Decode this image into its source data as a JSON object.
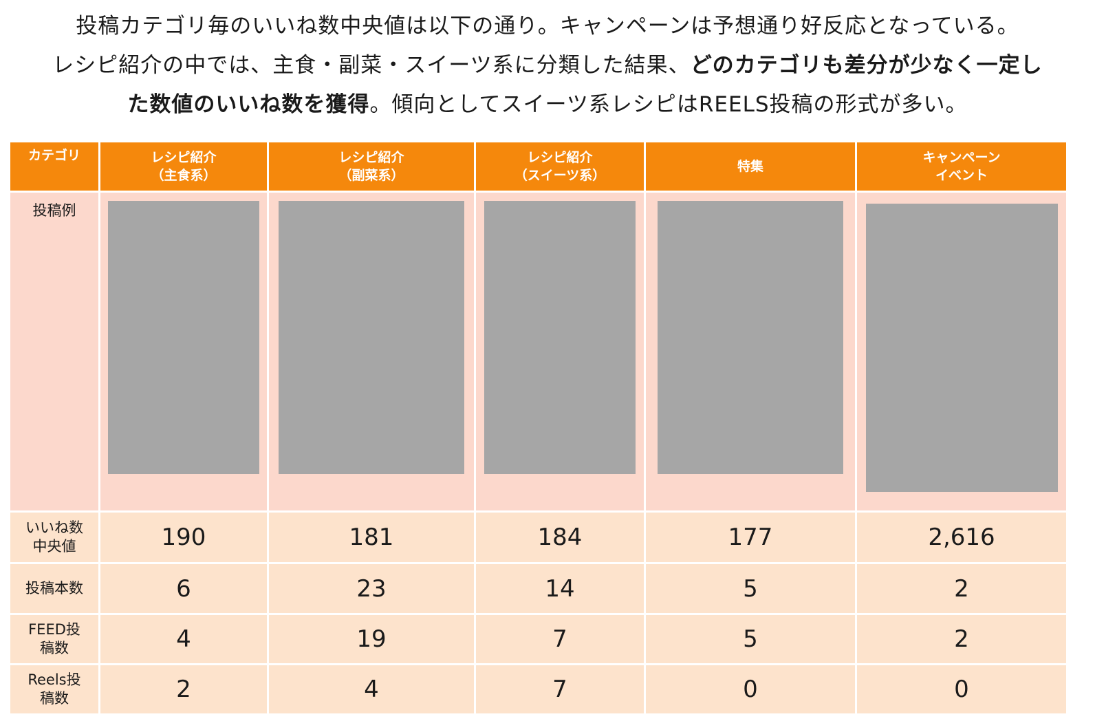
{
  "summary": {
    "line1": "投稿カテゴリ毎のいいね数中央値は以下の通り。キャンペーンは予想通り好反応となっている。",
    "line2_plain": "レシピ紹介の中では、主食・副菜・スイーツ系に分類した結果、",
    "line2_bold": "どのカテゴリも差分が少なく一定し",
    "line3_bold": "た数値のいいね数を獲得",
    "line3_plain": "。傾向としてスイーツ系レシピはREELS投稿の形式が多い。"
  },
  "table": {
    "header": {
      "category": "カテゴリ",
      "columns": [
        {
          "line1": "レシピ紹介",
          "line2": "（主食系）"
        },
        {
          "line1": "レシピ紹介",
          "line2": "（副菜系）"
        },
        {
          "line1": "レシピ紹介",
          "line2": "（スイーツ系）"
        },
        {
          "line1": "特集",
          "line2": ""
        },
        {
          "line1": "キャンペーン",
          "line2": "イベント"
        }
      ]
    },
    "example_label": "投稿例",
    "rows": {
      "likes": {
        "label1": "いいね数",
        "label2": "中央値",
        "values": [
          "190",
          "181",
          "184",
          "177",
          "2,616"
        ]
      },
      "posts": {
        "label1": "投稿本数",
        "values": [
          "6",
          "23",
          "14",
          "5",
          "2"
        ]
      },
      "feed": {
        "label1": "FEED投",
        "label2": "稿数",
        "values": [
          "4",
          "19",
          "7",
          "5",
          "2"
        ]
      },
      "reels": {
        "label1": "Reels投",
        "label2": "稿数",
        "values": [
          "2",
          "4",
          "7",
          "0",
          "0"
        ]
      }
    }
  },
  "colors": {
    "header_bg": "#f5880c",
    "image_row_bg": "#fcd8cc",
    "data_row_bg": "#fde3cc",
    "placeholder": "#a6a6a6"
  }
}
